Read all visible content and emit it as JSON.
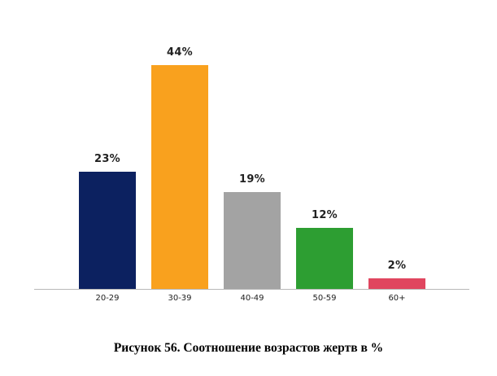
{
  "chart_data": {
    "type": "bar",
    "title": "Рисунок 56. Соотношение возрастов жертв в %",
    "categories": [
      "20-29",
      "30-39",
      "40-49",
      "50-59",
      "60+"
    ],
    "values": [
      23,
      44,
      19,
      12,
      2
    ],
    "value_labels": [
      "23%",
      "44%",
      "19%",
      "12%",
      "2%"
    ],
    "colors": [
      "#0c2160",
      "#f9a11e",
      "#a3a3a3",
      "#2d9e32",
      "#e0465f"
    ],
    "xlabel": "",
    "ylabel": "",
    "ylim": [
      0,
      45
    ],
    "grid": false,
    "legend": "none"
  },
  "caption": "Рисунок 56. Соотношение возрастов жертв в %"
}
